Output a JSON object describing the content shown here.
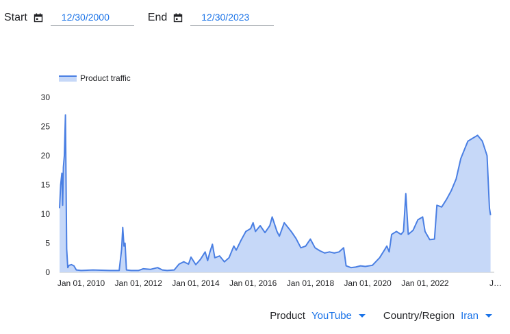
{
  "filters": {
    "start_label": "Start",
    "start_value": "12/30/2000",
    "end_label": "End",
    "end_value": "12/30/2023",
    "product_label": "Product",
    "product_value": "YouTube",
    "region_label": "Country/Region",
    "region_value": "Iran",
    "calendar_icon": "calendar-icon",
    "dropdown_icon": "triangle-down-icon"
  },
  "chart_data": {
    "type": "area",
    "legend": "Product traffic",
    "legend_position": "top-left",
    "color": "#4a7fe3",
    "fill": "#c6d8f8",
    "grid": false,
    "ylim": [
      0,
      30
    ],
    "yticks": [
      0,
      5,
      10,
      15,
      20,
      25,
      30
    ],
    "xlim": [
      "2009-04-01",
      "2024-06-01"
    ],
    "xtick_labels": [
      "Jan 01, 2010",
      "Jan 01, 2012",
      "Jan 01, 2014",
      "Jan 01, 2016",
      "Jan 01, 2018",
      "Jan 01, 2020",
      "Jan 01, 2022",
      "J…"
    ],
    "points": [
      [
        "2009-04-01",
        11
      ],
      [
        "2009-04-15",
        15
      ],
      [
        "2009-05-01",
        17
      ],
      [
        "2009-05-10",
        11.5
      ],
      [
        "2009-05-20",
        18
      ],
      [
        "2009-06-01",
        20
      ],
      [
        "2009-06-15",
        27
      ],
      [
        "2009-07-01",
        4
      ],
      [
        "2009-07-15",
        0.8
      ],
      [
        "2009-08-01",
        1.2
      ],
      [
        "2009-09-01",
        1.3
      ],
      [
        "2009-10-01",
        1.1
      ],
      [
        "2009-11-01",
        0.4
      ],
      [
        "2010-01-01",
        0.3
      ],
      [
        "2010-06-01",
        0.4
      ],
      [
        "2011-01-01",
        0.3
      ],
      [
        "2011-05-01",
        0.3
      ],
      [
        "2011-06-01",
        4
      ],
      [
        "2011-06-15",
        7.7
      ],
      [
        "2011-07-01",
        4.5
      ],
      [
        "2011-07-15",
        5
      ],
      [
        "2011-08-01",
        0.4
      ],
      [
        "2011-10-01",
        0.3
      ],
      [
        "2012-01-01",
        0.3
      ],
      [
        "2012-03-01",
        0.6
      ],
      [
        "2012-06-01",
        0.5
      ],
      [
        "2012-09-01",
        0.8
      ],
      [
        "2012-11-01",
        0.4
      ],
      [
        "2013-01-01",
        0.3
      ],
      [
        "2013-04-01",
        0.4
      ],
      [
        "2013-06-01",
        1.4
      ],
      [
        "2013-08-01",
        1.8
      ],
      [
        "2013-10-01",
        1.4
      ],
      [
        "2013-11-01",
        2.6
      ],
      [
        "2014-01-01",
        1.3
      ],
      [
        "2014-03-01",
        2.2
      ],
      [
        "2014-05-01",
        3.5
      ],
      [
        "2014-06-01",
        2
      ],
      [
        "2014-07-01",
        3.5
      ],
      [
        "2014-08-01",
        4.8
      ],
      [
        "2014-09-01",
        2.5
      ],
      [
        "2014-11-01",
        2.8
      ],
      [
        "2015-01-01",
        1.8
      ],
      [
        "2015-03-01",
        2.5
      ],
      [
        "2015-05-01",
        4.5
      ],
      [
        "2015-06-01",
        3.8
      ],
      [
        "2015-08-01",
        5.5
      ],
      [
        "2015-10-01",
        7
      ],
      [
        "2015-12-01",
        7.5
      ],
      [
        "2016-01-01",
        8.5
      ],
      [
        "2016-02-01",
        7
      ],
      [
        "2016-04-01",
        8
      ],
      [
        "2016-06-01",
        6.8
      ],
      [
        "2016-08-01",
        8
      ],
      [
        "2016-09-01",
        9.5
      ],
      [
        "2016-11-01",
        7
      ],
      [
        "2016-12-01",
        6.2
      ],
      [
        "2017-02-01",
        8.5
      ],
      [
        "2017-05-01",
        7
      ],
      [
        "2017-07-01",
        5.8
      ],
      [
        "2017-09-01",
        4.2
      ],
      [
        "2017-11-01",
        4.5
      ],
      [
        "2018-01-01",
        5.7
      ],
      [
        "2018-03-01",
        4.2
      ],
      [
        "2018-05-01",
        3.7
      ],
      [
        "2018-07-01",
        3.3
      ],
      [
        "2018-09-01",
        3.5
      ],
      [
        "2018-11-01",
        3.3
      ],
      [
        "2019-01-01",
        3.5
      ],
      [
        "2019-03-01",
        4.2
      ],
      [
        "2019-04-01",
        1.1
      ],
      [
        "2019-06-01",
        0.8
      ],
      [
        "2019-08-01",
        0.9
      ],
      [
        "2019-10-01",
        1.1
      ],
      [
        "2019-12-01",
        1.0
      ],
      [
        "2020-03-01",
        1.2
      ],
      [
        "2020-06-01",
        2.5
      ],
      [
        "2020-08-01",
        3.8
      ],
      [
        "2020-09-01",
        4.5
      ],
      [
        "2020-10-01",
        3.5
      ],
      [
        "2020-11-01",
        6.5
      ],
      [
        "2021-01-01",
        7
      ],
      [
        "2021-03-01",
        6.5
      ],
      [
        "2021-04-01",
        7
      ],
      [
        "2021-05-01",
        13.5
      ],
      [
        "2021-06-01",
        6.5
      ],
      [
        "2021-08-01",
        7.2
      ],
      [
        "2021-10-01",
        9
      ],
      [
        "2021-12-01",
        9.5
      ],
      [
        "2022-01-01",
        7
      ],
      [
        "2022-03-01",
        5.6
      ],
      [
        "2022-05-01",
        5.7
      ],
      [
        "2022-06-01",
        11.5
      ],
      [
        "2022-08-01",
        11.2
      ],
      [
        "2022-10-01",
        12.5
      ],
      [
        "2022-12-01",
        14
      ],
      [
        "2023-02-01",
        16
      ],
      [
        "2023-04-01",
        19.5
      ],
      [
        "2023-06-01",
        21.5
      ],
      [
        "2023-07-01",
        22.5
      ],
      [
        "2023-09-01",
        23
      ],
      [
        "2023-11-01",
        23.5
      ],
      [
        "2024-01-01",
        22.5
      ],
      [
        "2024-03-01",
        20
      ],
      [
        "2024-04-01",
        11
      ],
      [
        "2024-04-15",
        9.8
      ]
    ]
  }
}
